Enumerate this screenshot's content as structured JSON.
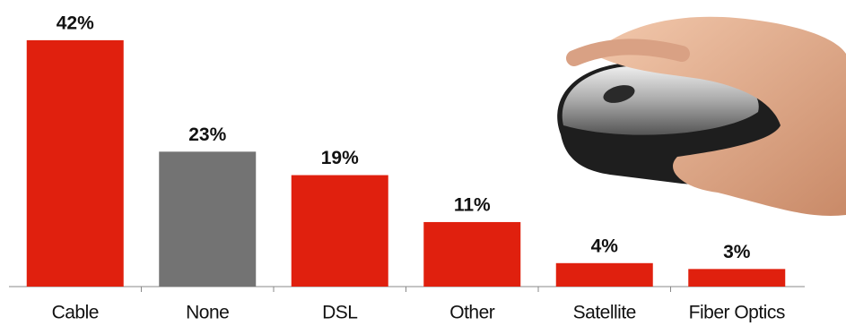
{
  "chart_data": {
    "type": "bar",
    "categories": [
      "Cable",
      "None",
      "DSL",
      "Other",
      "Satellite",
      "Fiber Optics"
    ],
    "values": [
      42,
      23,
      19,
      11,
      4,
      3
    ],
    "value_labels": [
      "42%",
      "23%",
      "19%",
      "11%",
      "4%",
      "3%"
    ],
    "colors": [
      "#e0200e",
      "#737373",
      "#e0200e",
      "#e0200e",
      "#e0200e",
      "#e0200e"
    ]
  }
}
